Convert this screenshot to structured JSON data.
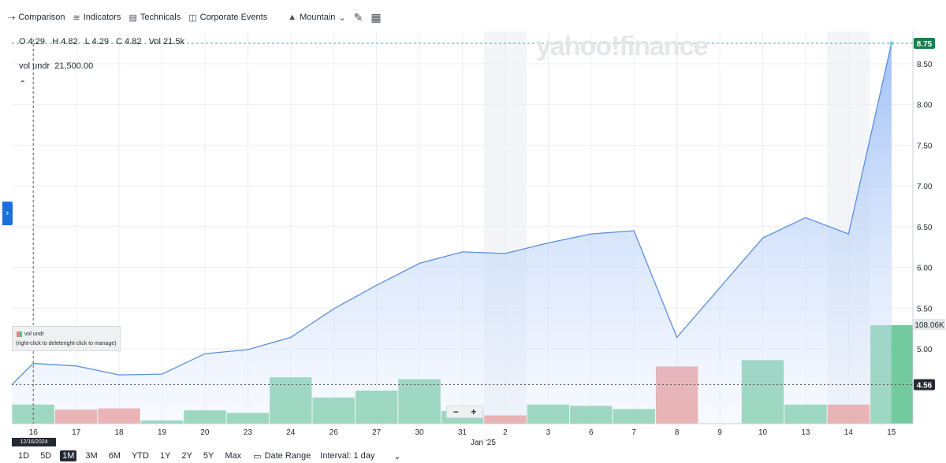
{
  "toolbar": {
    "comparison": "Comparison",
    "indicators": "Indicators",
    "technicals": "Technicals",
    "corporate_events": "Corporate Events",
    "mountain": "Mountain",
    "comparison_icon": "comparison-icon",
    "indicators_icon": "indicators-icon",
    "technicals_icon": "technicals-icon",
    "events_icon": "corporate-events-icon",
    "mountain_icon": "mountain-icon",
    "draw_icon": "pencil-icon",
    "table_icon": "table-icon"
  },
  "ohlc": {
    "text": "O 4.29   H 4.82   L 4.29   C 4.82   Vol 21.5k"
  },
  "indicator": {
    "label": "vol undr",
    "value": "21,500.00"
  },
  "watermark": "yahoo!finance",
  "legend": {
    "label": "vol undr",
    "hint": "(right-click to deleteright-click to manage)"
  },
  "tooltip_date": "12/16/2024",
  "bottom": {
    "ranges": [
      "1D",
      "5D",
      "1M",
      "3M",
      "6M",
      "YTD",
      "1Y",
      "2Y",
      "5Y",
      "Max"
    ],
    "active_range": "1M",
    "date_range": "Date Range",
    "interval": "Interval: 1 day"
  },
  "chart_data": {
    "type": "area",
    "x": [
      "16",
      "17",
      "18",
      "19",
      "20",
      "23",
      "24",
      "26",
      "27",
      "30",
      "31",
      "2",
      "3",
      "6",
      "7",
      "8",
      "9",
      "10",
      "13",
      "14",
      "15"
    ],
    "x_sub_label": {
      "index": 11,
      "text": "Jan '25"
    },
    "series": [
      {
        "values": [
          4.82,
          4.79,
          4.68,
          4.69,
          4.94,
          4.99,
          5.14,
          5.49,
          5.78,
          6.05,
          6.19,
          6.17,
          6.3,
          6.41,
          6.45,
          5.14,
          5.75,
          6.36,
          6.61,
          6.41,
          8.75
        ]
      }
    ],
    "volume": {
      "values": [
        30,
        22,
        24,
        5,
        21,
        17,
        73,
        41,
        52,
        70,
        20,
        13,
        30,
        28,
        23,
        90,
        0,
        100,
        30,
        30,
        155
      ],
      "up": [
        true,
        false,
        false,
        true,
        true,
        true,
        true,
        true,
        true,
        true,
        true,
        false,
        true,
        true,
        true,
        false,
        true,
        true,
        true,
        false,
        true
      ]
    },
    "y_ticks": [
      "8.50",
      "8.00",
      "7.50",
      "7.00",
      "6.50",
      "6.00",
      "5.50",
      "5.00"
    ],
    "ylim": [
      4.0,
      8.95
    ],
    "last_price": "8.75",
    "ref_price": "4.56",
    "volume_max_label": "108.06K",
    "colors": {
      "line": "#5a8fe0",
      "up": "#5cc18e",
      "down": "#e8807a",
      "last_badge": "#1b7d4f",
      "ref_badge": "#232a31"
    }
  }
}
